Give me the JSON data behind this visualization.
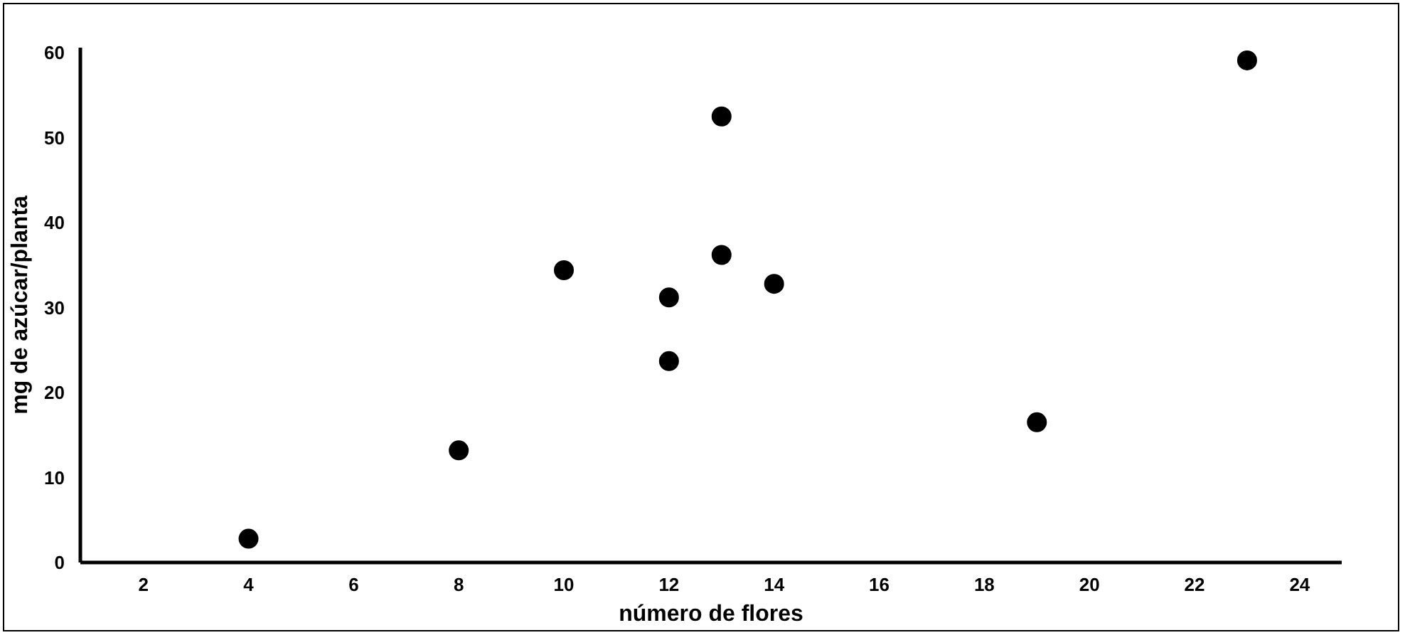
{
  "chart_data": {
    "type": "scatter",
    "xlabel": "número de flores",
    "ylabel": "mg de azúcar/planta",
    "x": [
      4,
      8,
      10,
      12,
      12,
      13,
      13,
      14,
      19,
      23
    ],
    "values": [
      2.8,
      13.2,
      34.4,
      31.2,
      23.7,
      52.5,
      36.2,
      32.8,
      16.5,
      59.1
    ],
    "color": "#000000",
    "marker": "circle",
    "grid": false,
    "xlim": [
      0.8,
      24.8
    ],
    "ylim": [
      0,
      60.6
    ],
    "xticks": [
      2,
      4,
      6,
      8,
      10,
      12,
      14,
      16,
      18,
      20,
      22,
      24
    ],
    "yticks": [
      0,
      10,
      20,
      30,
      40,
      50,
      60
    ]
  }
}
